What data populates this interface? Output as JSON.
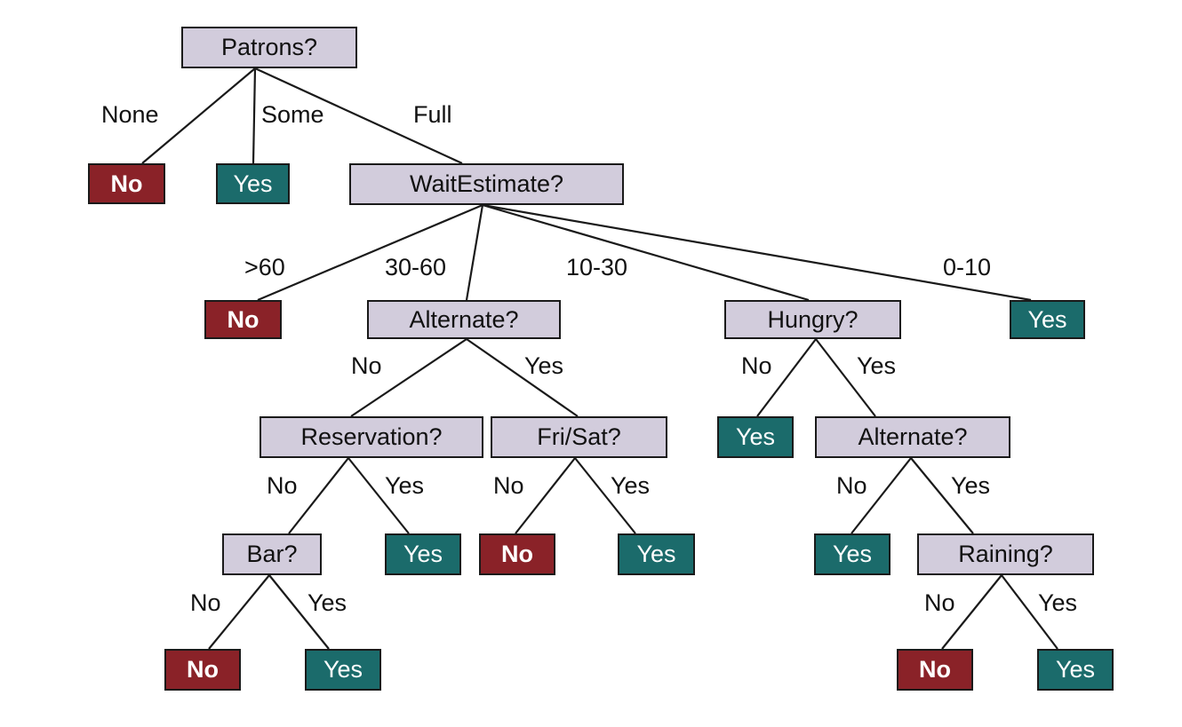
{
  "colors": {
    "attribute_fill": "#d2ccdc",
    "no_fill": "#8a2228",
    "yes_fill": "#1b6b6b",
    "line": "#1a1a1a"
  },
  "nodes": {
    "patrons": "Patrons?",
    "patrons_none": "No",
    "patrons_some": "Yes",
    "wait_estimate": "WaitEstimate?",
    "wait_gt60": "No",
    "alternate_1": "Alternate?",
    "hungry": "Hungry?",
    "wait_0_10": "Yes",
    "reservation": "Reservation?",
    "fri_sat": "Fri/Sat?",
    "hungry_no": "Yes",
    "alternate_2": "Alternate?",
    "bar": "Bar?",
    "reservation_yes": "Yes",
    "fri_sat_no": "No",
    "fri_sat_yes": "Yes",
    "alternate_2_no": "Yes",
    "raining": "Raining?",
    "bar_no": "No",
    "bar_yes": "Yes",
    "raining_no": "No",
    "raining_yes": "Yes"
  },
  "edge_labels": {
    "none": "None",
    "some": "Some",
    "full": "Full",
    "gt60": ">60",
    "w30_60": "30-60",
    "w10_30": "10-30",
    "w0_10": "0-10",
    "alt1_no": "No",
    "alt1_yes": "Yes",
    "hungry_no": "No",
    "hungry_yes": "Yes",
    "res_no": "No",
    "res_yes": "Yes",
    "fri_no": "No",
    "fri_yes": "Yes",
    "alt2_no": "No",
    "alt2_yes": "Yes",
    "bar_no": "No",
    "bar_yes": "Yes",
    "rain_no": "No",
    "rain_yes": "Yes"
  }
}
